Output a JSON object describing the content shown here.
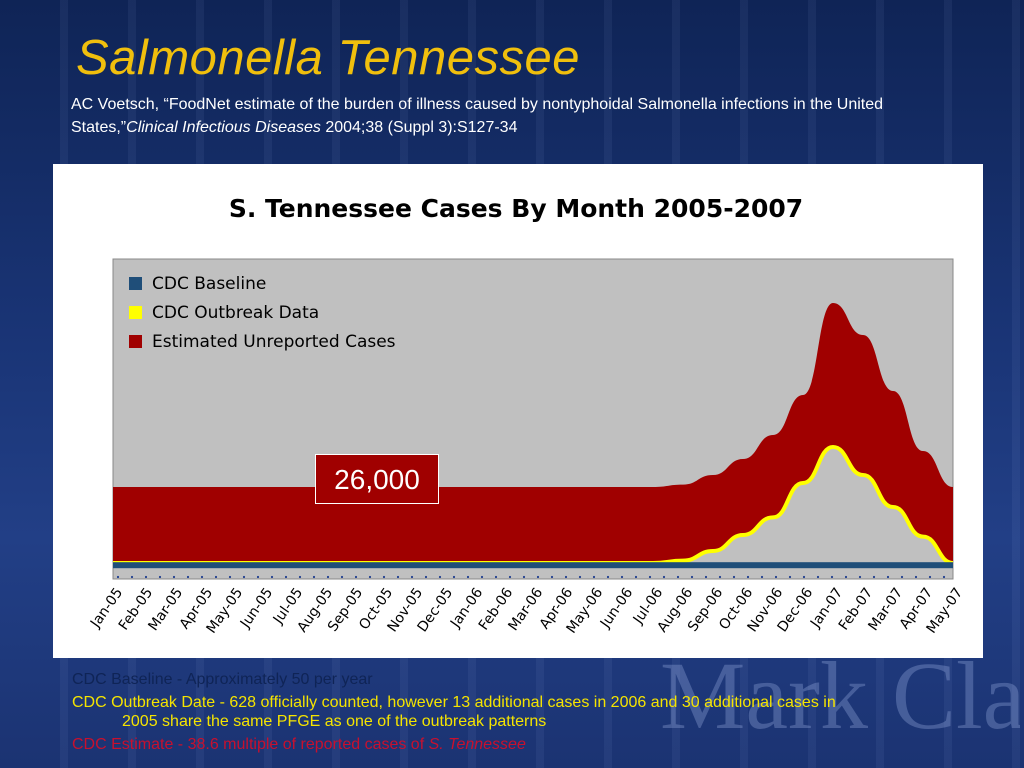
{
  "slide": {
    "title": "Salmonella Tennessee",
    "citation": {
      "text_before": "AC Voetsch, “FoodNet estimate of the burden of illness caused by nontyphoidal Salmonella infections in the United States,”",
      "journal": "Clinical Infectious Diseases",
      "text_after": " 2004;38 (Suppl 3):S127-34"
    },
    "callout": "26,000",
    "notes": {
      "baseline": "CDC Baseline - Approximately 50 per year",
      "outbreak": "CDC Outbreak Date - 628 officially counted, however 13 additional cases in 2006 and 30 additional cases in 2005 share the same PFGE as one of the outbreak patterns",
      "estimate_prefix": "CDC Estimate - 38.6 multiple of reported cases of ",
      "estimate_italic": "S. Tennessee"
    },
    "watermark": "Mark Clark"
  },
  "chart_data": {
    "type": "area",
    "title": "S. Tennessee Cases By Month 2005-2007",
    "xlabel": "",
    "ylabel": "",
    "grid": false,
    "legend_placement": "top-left",
    "categories": [
      "Jan-05",
      "Feb-05",
      "Mar-05",
      "Apr-05",
      "May-05",
      "Jun-05",
      "Jul-05",
      "Aug-05",
      "Sep-05",
      "Oct-05",
      "Nov-05",
      "Dec-05",
      "Jan-06",
      "Feb-06",
      "Mar-06",
      "Apr-06",
      "May-06",
      "Jun-06",
      "Jul-06",
      "Aug-06",
      "Sep-06",
      "Oct-06",
      "Nov-06",
      "Dec-06",
      "Jan-07",
      "Feb-07",
      "Mar-07",
      "Apr-07",
      "May-07"
    ],
    "series": [
      {
        "name": "Estimated Unreported Cases",
        "color": "#a00000",
        "values": [
          1.0,
          1.0,
          1.0,
          1.0,
          1.0,
          1.0,
          1.0,
          1.0,
          1.0,
          1.0,
          1.0,
          1.0,
          1.0,
          1.0,
          1.0,
          1.0,
          1.0,
          1.0,
          1.0,
          1.03,
          1.15,
          1.35,
          1.65,
          2.15,
          3.3,
          2.9,
          2.2,
          1.45,
          1.0
        ]
      },
      {
        "name": "CDC Outbreak Data",
        "color": "#ffff00",
        "values": [
          0.05,
          0.05,
          0.05,
          0.05,
          0.05,
          0.05,
          0.05,
          0.05,
          0.05,
          0.05,
          0.05,
          0.05,
          0.05,
          0.05,
          0.05,
          0.05,
          0.05,
          0.05,
          0.05,
          0.08,
          0.2,
          0.4,
          0.62,
          1.05,
          1.5,
          1.15,
          0.75,
          0.38,
          0.05
        ]
      },
      {
        "name": "CDC Baseline",
        "color": "#1f4e79",
        "values": [
          0.01,
          0.01,
          0.01,
          0.01,
          0.01,
          0.01,
          0.01,
          0.01,
          0.01,
          0.01,
          0.01,
          0.01,
          0.01,
          0.01,
          0.01,
          0.01,
          0.01,
          0.01,
          0.01,
          0.01,
          0.01,
          0.01,
          0.01,
          0.01,
          0.01,
          0.01,
          0.01,
          0.01,
          0.01
        ]
      }
    ],
    "legend": [
      "CDC Baseline",
      "CDC Outbreak Data",
      "Estimated Unreported Cases"
    ],
    "ylim": [
      0,
      3.5
    ]
  }
}
